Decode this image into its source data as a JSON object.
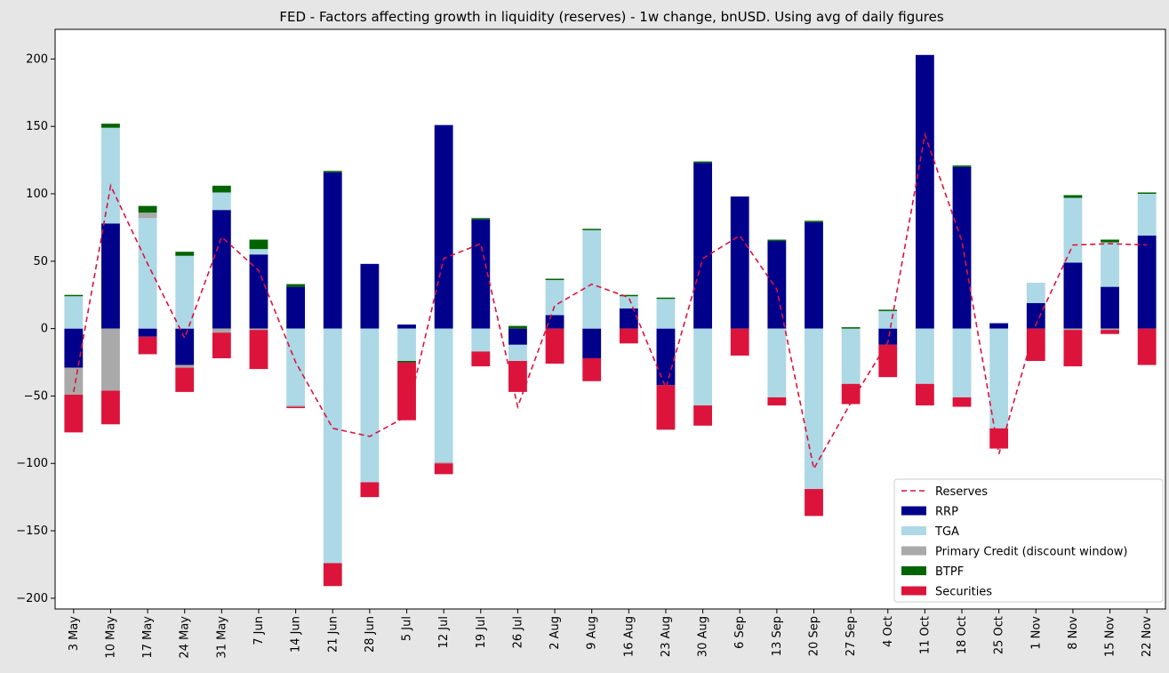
{
  "chart_data": {
    "type": "bar",
    "title": "FED - Factors affecting growth in liquidity (reserves) - 1w change, bnUSD. Using avg of daily figures",
    "xlabel": "",
    "ylabel": "",
    "ylim": [
      -208,
      222
    ],
    "yticks": [
      200,
      150,
      100,
      50,
      0,
      -50,
      -100,
      -150,
      -200
    ],
    "categories": [
      "3 May",
      "10 May",
      "17 May",
      "24 May",
      "31 May",
      "7 Jun",
      "14 Jun",
      "21 Jun",
      "28 Jun",
      "5 Jul",
      "12 Jul",
      "19 Jul",
      "26 Jul",
      "2 Aug",
      "9 Aug",
      "16 Aug",
      "23 Aug",
      "30 Aug",
      "6 Sep",
      "13 Sep",
      "20 Sep",
      "27 Sep",
      "4 Oct",
      "11 Oct",
      "18 Oct",
      "25 Oct",
      "1 Nov",
      "8 Nov",
      "15 Nov",
      "22 Nov"
    ],
    "stacked": true,
    "series": [
      {
        "name": "RRP",
        "color": "#00008b",
        "values": [
          -29,
          78,
          -6,
          -27,
          88,
          55,
          31,
          116,
          48,
          3,
          151,
          81,
          -12,
          10,
          -22,
          15,
          -42,
          123,
          98,
          65,
          79,
          0,
          -12,
          203,
          120,
          4,
          19,
          49,
          31,
          69
        ]
      },
      {
        "name": "TGA",
        "color": "#add8e6",
        "values": [
          24,
          71,
          82,
          54,
          13,
          4,
          -57,
          -174,
          -114,
          -24,
          -99,
          -17,
          -12,
          26,
          73,
          9,
          22,
          -57,
          0,
          -51,
          -119,
          -41,
          13,
          -41,
          -51,
          -74,
          15,
          48,
          33,
          31
        ]
      },
      {
        "name": "Primary Credit (discount window)",
        "color": "#a9a9a9",
        "values": [
          -20,
          -46,
          4,
          -2,
          -3,
          -1,
          -1,
          0,
          0,
          0,
          -1,
          0,
          0,
          0,
          0,
          0,
          0,
          0,
          0,
          0,
          0,
          0,
          0,
          0,
          0,
          0,
          0,
          -1,
          -1,
          0
        ]
      },
      {
        "name": "BTPF",
        "color": "#006400",
        "values": [
          1,
          3,
          5,
          3,
          5,
          7,
          2,
          1,
          0,
          -1,
          0,
          1,
          2,
          1,
          1,
          1,
          1,
          1,
          0,
          1,
          1,
          1,
          1,
          0,
          1,
          0,
          0,
          2,
          2,
          1
        ]
      },
      {
        "name": "Securities",
        "color": "#dc143c",
        "values": [
          -28,
          -25,
          -13,
          -18,
          -19,
          -29,
          -1,
          -17,
          -11,
          -43,
          -8,
          -11,
          -23,
          -26,
          -17,
          -11,
          -33,
          -15,
          -20,
          -6,
          -20,
          -15,
          -24,
          -16,
          -7,
          -15,
          -24,
          -27,
          -3,
          -27
        ]
      }
    ],
    "line": {
      "name": "Reserves",
      "color": "#dc143c",
      "style": "dashed",
      "values": [
        -47,
        106,
        48,
        -7,
        68,
        43,
        -25,
        -74,
        -80,
        -65,
        52,
        63,
        -58,
        17,
        33,
        23,
        -44,
        52,
        69,
        29,
        -104,
        -55,
        -10,
        144,
        65,
        -93,
        3,
        62,
        63,
        62
      ]
    },
    "legend_position": "lower-right",
    "grid": false
  }
}
